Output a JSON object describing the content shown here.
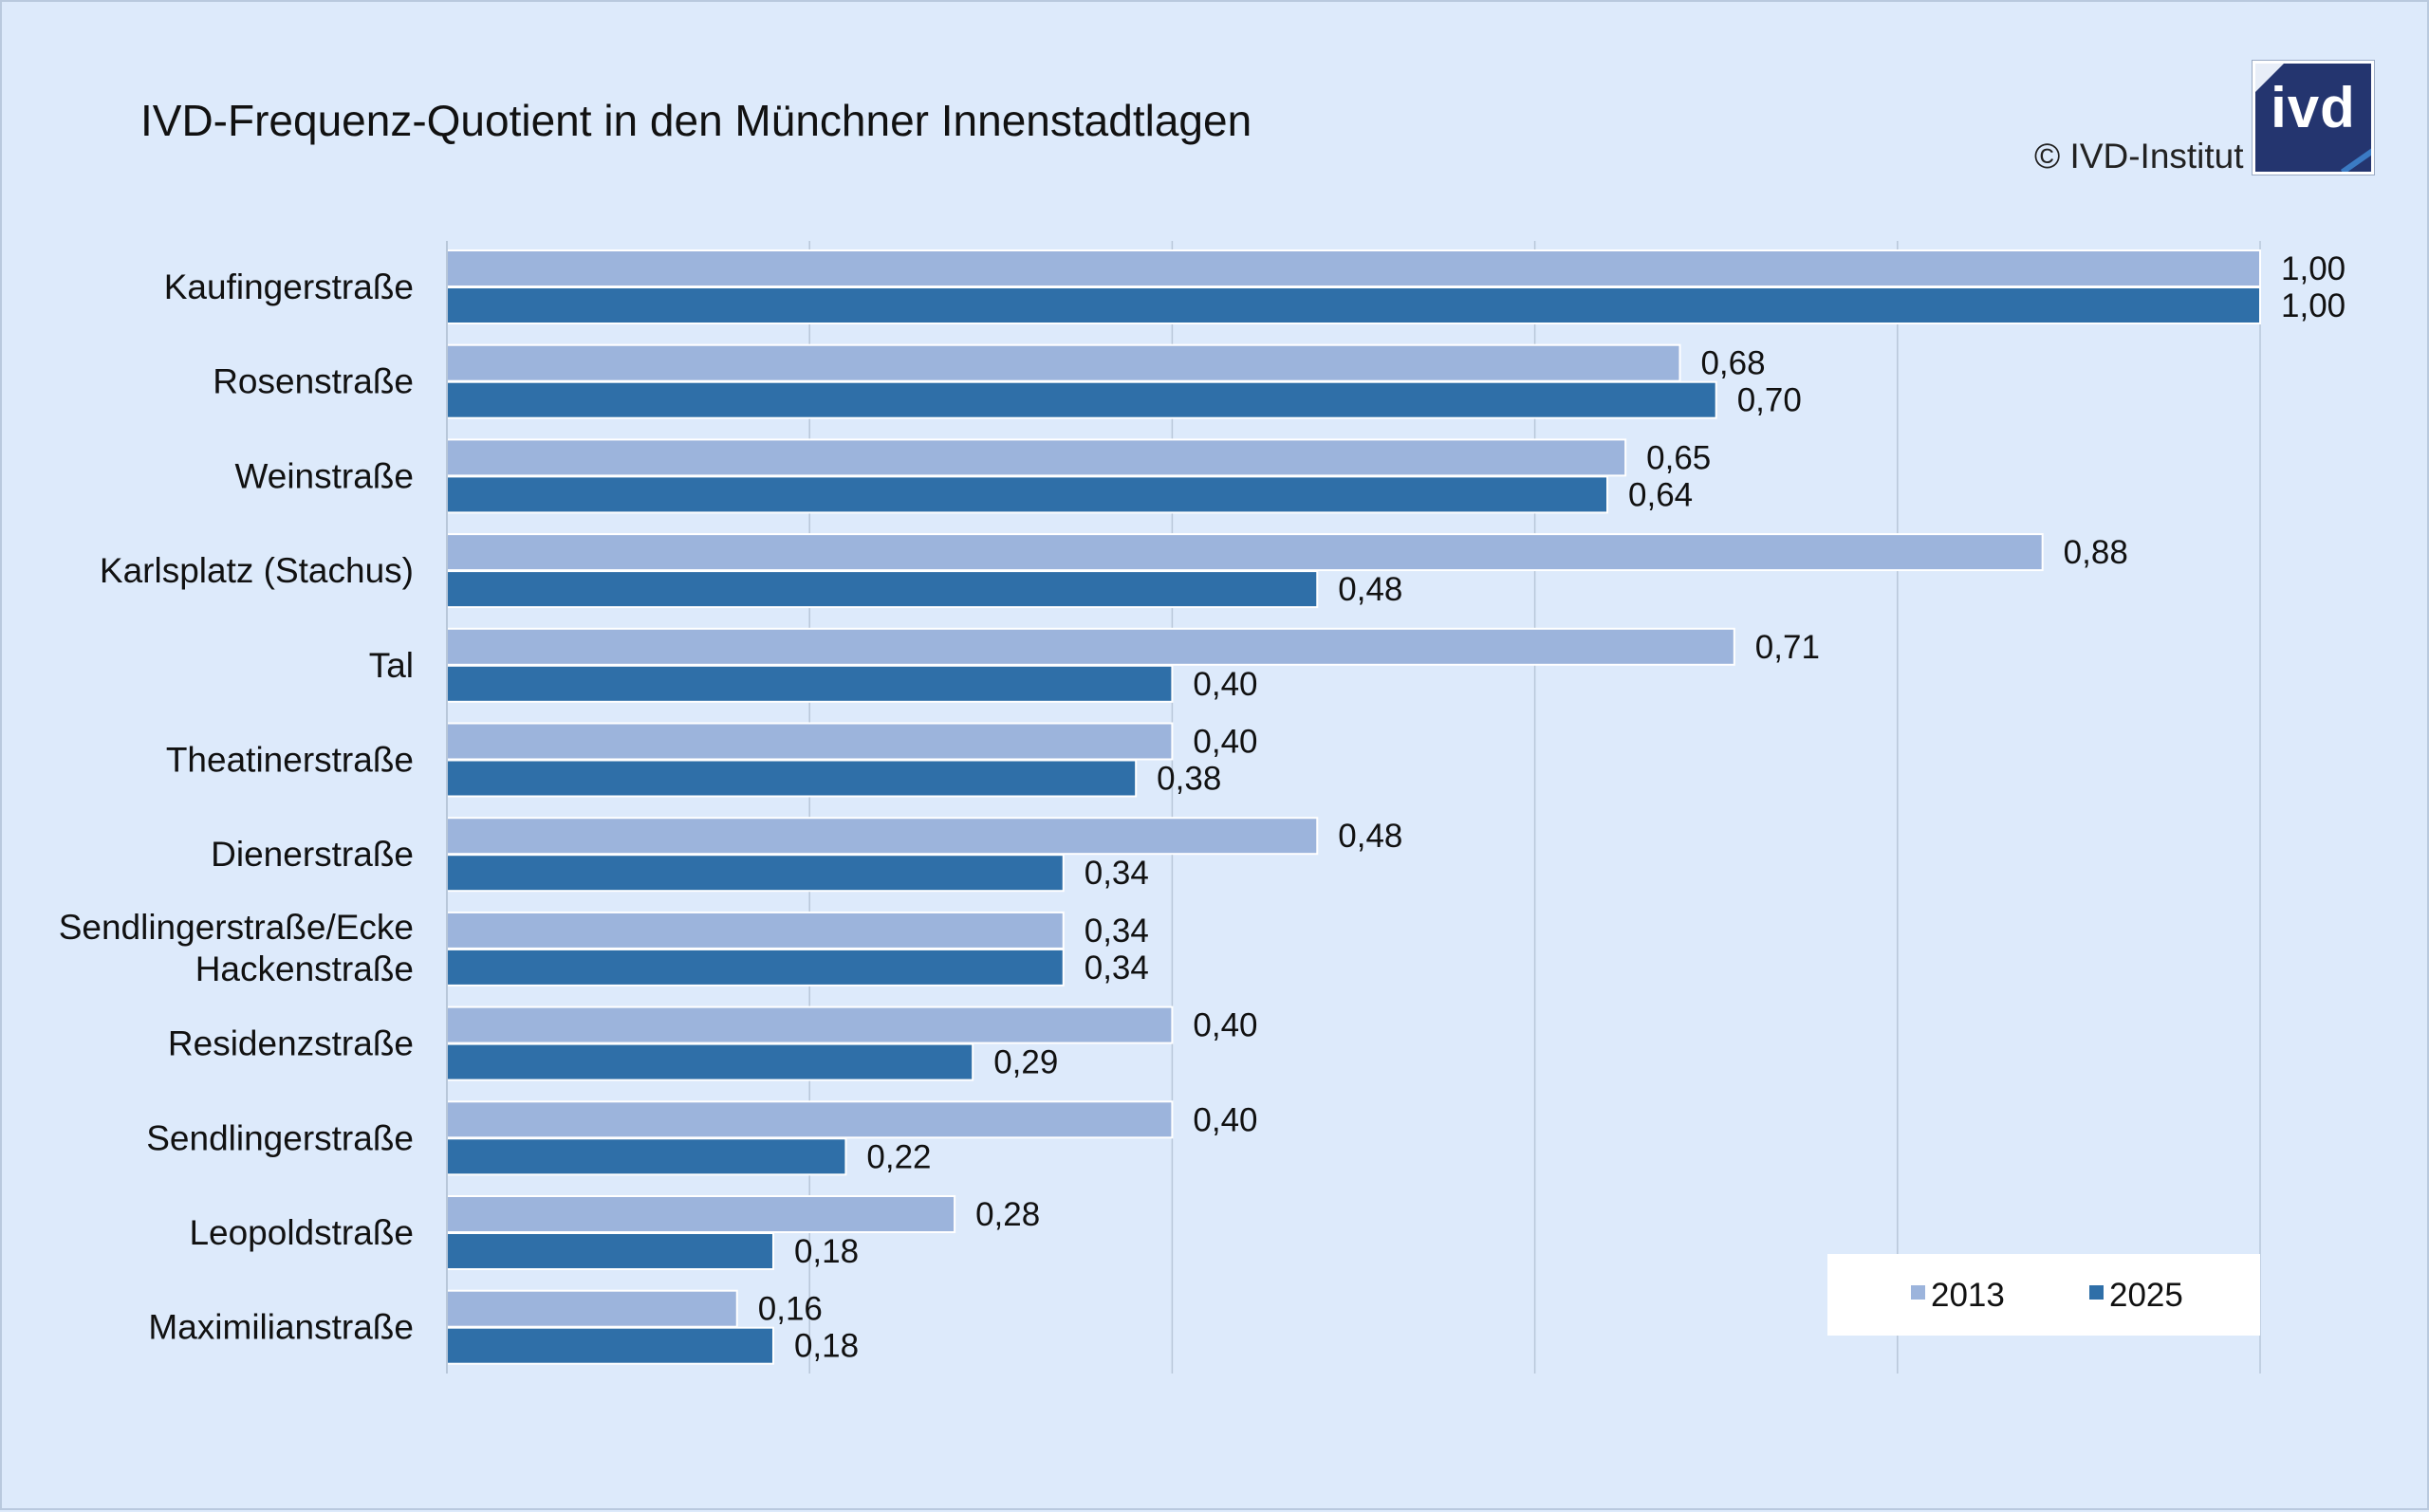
{
  "title": "IVD-Frequenz-Quotient in den Münchner Innenstadtlagen",
  "copyright": "© IVD-Institut",
  "logo_text": "ivd",
  "colors": {
    "background": "#ddeafb",
    "series_2013": "#9cb4dc",
    "series_2025": "#2f6fa8",
    "grid": "#b8c7d9"
  },
  "chart_data": {
    "type": "bar",
    "orientation": "horizontal",
    "title": "IVD-Frequenz-Quotient in den Münchner Innenstadtlagen",
    "categories": [
      "Kaufingerstraße",
      "Rosenstraße",
      "Weinstraße",
      "Karlsplatz (Stachus)",
      "Tal",
      "Theatinerstraße",
      "Dienerstraße",
      "Sendlingerstraße/Ecke Hackenstraße",
      "Residenzstraße",
      "Sendlingerstraße",
      "Leopoldstraße",
      "Maximilianstraße"
    ],
    "series": [
      {
        "name": "2013",
        "values": [
          1.0,
          0.68,
          0.65,
          0.88,
          0.71,
          0.4,
          0.48,
          0.34,
          0.4,
          0.4,
          0.28,
          0.16
        ],
        "labels": [
          "1,00",
          "0,68",
          "0,65",
          "0,88",
          "0,71",
          "0,40",
          "0,48",
          "0,34",
          "0,40",
          "0,40",
          "0,28",
          "0,16"
        ]
      },
      {
        "name": "2025",
        "values": [
          1.0,
          0.7,
          0.64,
          0.48,
          0.4,
          0.38,
          0.34,
          0.34,
          0.29,
          0.22,
          0.18,
          0.18
        ],
        "labels": [
          "1,00",
          "0,70",
          "0,64",
          "0,48",
          "0,40",
          "0,38",
          "0,34",
          "0,34",
          "0,29",
          "0,22",
          "0,18",
          "0,18"
        ]
      }
    ],
    "xlim": [
      0,
      1
    ],
    "grid": true,
    "legend_position": "bottom-right"
  }
}
